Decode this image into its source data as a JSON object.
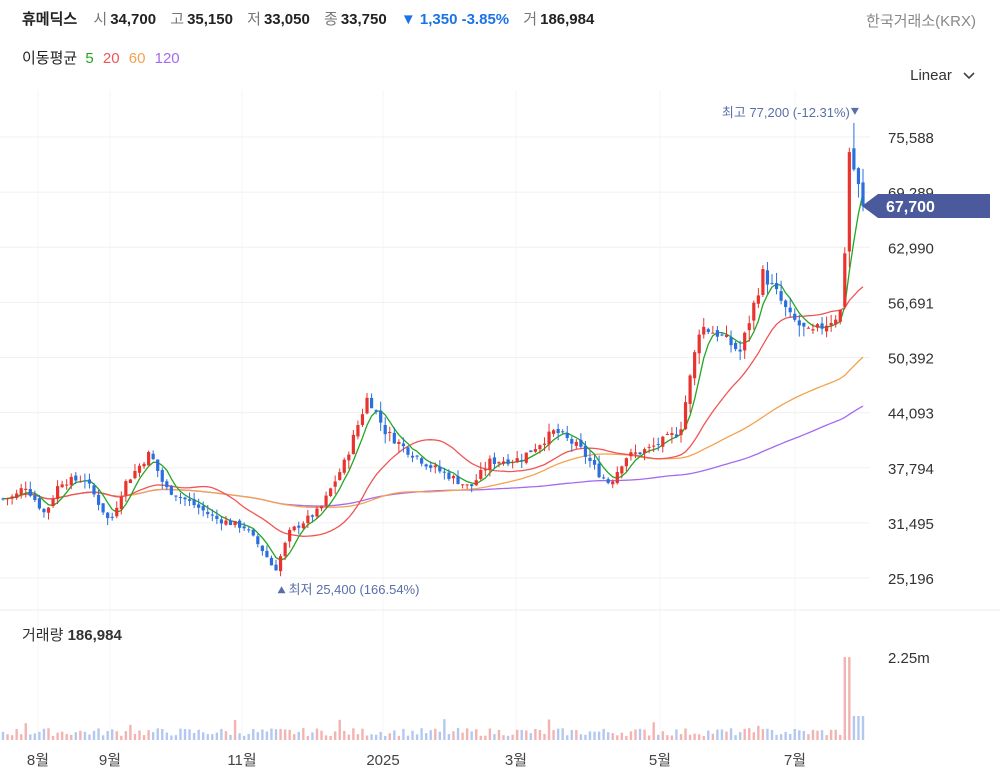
{
  "header": {
    "name": "휴메딕스",
    "open_label": "시",
    "open": "34,700",
    "high_label": "고",
    "high": "35,150",
    "low_label": "저",
    "low": "33,050",
    "close_label": "종",
    "close": "33,750",
    "change": "▼ 1,350 -3.85%",
    "volume_label": "거",
    "volume": "186,984",
    "exchange": "한국거래소(KRX)"
  },
  "ma_legend": {
    "label": "이동평균",
    "items": [
      {
        "period": "5",
        "color": "#22a722"
      },
      {
        "period": "20",
        "color": "#f05555"
      },
      {
        "period": "60",
        "color": "#f5a14f"
      },
      {
        "period": "120",
        "color": "#a36bf0"
      }
    ]
  },
  "scale_selector": {
    "label": "Linear"
  },
  "chart_data": {
    "type": "candlestick",
    "y_ticks": [
      "75,588",
      "69,289",
      "62,990",
      "56,691",
      "50,392",
      "44,093",
      "37,794",
      "31,495",
      "25,196"
    ],
    "y_tick_values": [
      75588,
      69289,
      62990,
      56691,
      50392,
      44093,
      37794,
      31495,
      25196
    ],
    "current_price_label": "67,700",
    "current_price": 67700,
    "high_annotation": "최고 77,200 (-12.31%)",
    "high_value": 77200,
    "low_annotation": "최저 25,400 (166.54%)",
    "low_value": 25400,
    "x_labels": [
      "8월",
      "9월",
      "11월",
      "2025",
      "3월",
      "5월",
      "7월"
    ],
    "colors": {
      "up": "#e8342f",
      "down": "#2b6fdf",
      "ma5": "#22a722",
      "ma20": "#f05555",
      "ma60": "#f5a14f",
      "ma120": "#a36bf0",
      "current_tag": "#4a5a9c",
      "annotation": "#5a6fa8"
    },
    "volume": {
      "title": "거래량",
      "value": "186,984",
      "y_tick": "2.25m",
      "y_tick_value": 2250000
    }
  }
}
